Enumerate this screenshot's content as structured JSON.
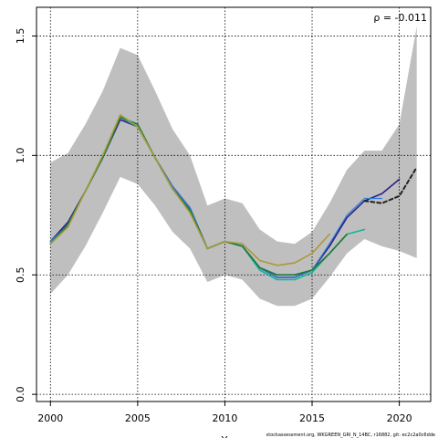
{
  "chart_data": {
    "type": "line",
    "annotation": "ρ = -0.011",
    "footer": "stockassessment.org, WKGREEN_GRI_N_14BC, r16882, git: ec2c2a0c6dde",
    "xlabel": "Y",
    "ylabel": "",
    "xlim": [
      1999.2,
      2021.8
    ],
    "ylim": [
      -0.03,
      1.62
    ],
    "xticks": [
      2000,
      2005,
      2010,
      2015,
      2020
    ],
    "yticks": [
      0.0,
      0.5,
      1.0,
      1.5
    ],
    "grid": true,
    "band": {
      "x": [
        2000,
        2001,
        2002,
        2003,
        2004,
        2005,
        2006,
        2007,
        2008,
        2009,
        2010,
        2011,
        2012,
        2013,
        2014,
        2015,
        2016,
        2017,
        2018,
        2019,
        2020,
        2021
      ],
      "upper": [
        0.97,
        1.01,
        1.13,
        1.27,
        1.45,
        1.42,
        1.27,
        1.11,
        1.0,
        0.79,
        0.82,
        0.8,
        0.69,
        0.64,
        0.63,
        0.68,
        0.8,
        0.94,
        1.02,
        1.02,
        1.13,
        1.54
      ],
      "lower": [
        0.42,
        0.5,
        0.62,
        0.76,
        0.91,
        0.88,
        0.79,
        0.68,
        0.61,
        0.47,
        0.5,
        0.48,
        0.4,
        0.37,
        0.37,
        0.4,
        0.49,
        0.59,
        0.65,
        0.62,
        0.6,
        0.57
      ]
    },
    "series": [
      {
        "color": "#2a1f8a",
        "width": 1.6,
        "dash": "",
        "points": [
          [
            2000,
            0.64
          ],
          [
            2001,
            0.72
          ],
          [
            2002,
            0.85
          ],
          [
            2003,
            0.99
          ],
          [
            2004,
            1.15
          ],
          [
            2005,
            1.12
          ],
          [
            2006,
            0.99
          ],
          [
            2007,
            0.87
          ],
          [
            2008,
            0.78
          ],
          [
            2009,
            0.61
          ],
          [
            2010,
            0.64
          ],
          [
            2011,
            0.62
          ],
          [
            2012,
            0.53
          ],
          [
            2013,
            0.49
          ],
          [
            2014,
            0.49
          ],
          [
            2015,
            0.52
          ],
          [
            2016,
            0.62
          ],
          [
            2017,
            0.74
          ],
          [
            2018,
            0.81
          ],
          [
            2019,
            0.84
          ],
          [
            2020,
            0.9
          ]
        ]
      },
      {
        "color": "#2c7fd6",
        "width": 1.2,
        "dash": "",
        "points": [
          [
            2000,
            0.64
          ],
          [
            2001,
            0.71
          ],
          [
            2002,
            0.85
          ],
          [
            2003,
            1.0
          ],
          [
            2004,
            1.16
          ],
          [
            2005,
            1.12
          ],
          [
            2006,
            0.99
          ],
          [
            2007,
            0.87
          ],
          [
            2008,
            0.78
          ],
          [
            2009,
            0.61
          ],
          [
            2010,
            0.64
          ],
          [
            2011,
            0.62
          ],
          [
            2012,
            0.53
          ],
          [
            2013,
            0.49
          ],
          [
            2014,
            0.49
          ],
          [
            2015,
            0.52
          ],
          [
            2016,
            0.63
          ],
          [
            2017,
            0.75
          ],
          [
            2018,
            0.82
          ],
          [
            2019,
            0.82
          ]
        ]
      },
      {
        "color": "#16b39b",
        "width": 1.6,
        "dash": "",
        "points": [
          [
            2000,
            0.63
          ],
          [
            2001,
            0.71
          ],
          [
            2002,
            0.85
          ],
          [
            2003,
            0.99
          ],
          [
            2004,
            1.16
          ],
          [
            2005,
            1.12
          ],
          [
            2006,
            0.99
          ],
          [
            2007,
            0.86
          ],
          [
            2008,
            0.77
          ],
          [
            2009,
            0.61
          ],
          [
            2010,
            0.64
          ],
          [
            2011,
            0.62
          ],
          [
            2012,
            0.52
          ],
          [
            2013,
            0.48
          ],
          [
            2014,
            0.48
          ],
          [
            2015,
            0.51
          ],
          [
            2016,
            0.59
          ],
          [
            2017,
            0.67
          ],
          [
            2018,
            0.69
          ]
        ]
      },
      {
        "color": "#1d7a3a",
        "width": 1.6,
        "dash": "",
        "points": [
          [
            2000,
            0.63
          ],
          [
            2001,
            0.71
          ],
          [
            2002,
            0.85
          ],
          [
            2003,
            0.99
          ],
          [
            2004,
            1.16
          ],
          [
            2005,
            1.13
          ],
          [
            2006,
            0.99
          ],
          [
            2007,
            0.86
          ],
          [
            2008,
            0.77
          ],
          [
            2009,
            0.61
          ],
          [
            2010,
            0.64
          ],
          [
            2011,
            0.62
          ],
          [
            2012,
            0.53
          ],
          [
            2013,
            0.5
          ],
          [
            2014,
            0.5
          ],
          [
            2015,
            0.52
          ],
          [
            2016,
            0.59
          ],
          [
            2017,
            0.67
          ]
        ]
      },
      {
        "color": "#a89a3a",
        "width": 1.6,
        "dash": "",
        "points": [
          [
            2000,
            0.63
          ],
          [
            2001,
            0.7
          ],
          [
            2002,
            0.85
          ],
          [
            2003,
            1.0
          ],
          [
            2004,
            1.17
          ],
          [
            2005,
            1.12
          ],
          [
            2006,
            0.99
          ],
          [
            2007,
            0.86
          ],
          [
            2008,
            0.76
          ],
          [
            2009,
            0.61
          ],
          [
            2010,
            0.64
          ],
          [
            2011,
            0.63
          ],
          [
            2012,
            0.56
          ],
          [
            2013,
            0.54
          ],
          [
            2014,
            0.55
          ],
          [
            2015,
            0.59
          ],
          [
            2016,
            0.67
          ]
        ]
      },
      {
        "color": "#222222",
        "width": 2.0,
        "dash": "4,3",
        "points": [
          [
            2018,
            0.81
          ],
          [
            2019,
            0.8
          ],
          [
            2020,
            0.83
          ],
          [
            2021,
            0.95
          ]
        ]
      }
    ]
  }
}
